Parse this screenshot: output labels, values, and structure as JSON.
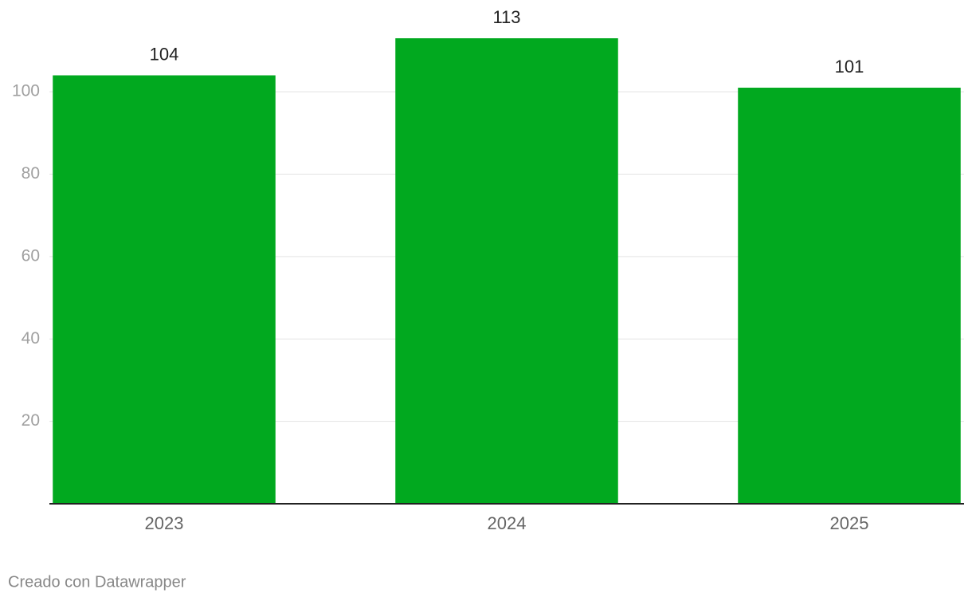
{
  "chart_data": {
    "type": "bar",
    "categories": [
      "2023",
      "2024",
      "2025"
    ],
    "values": [
      104,
      113,
      101
    ],
    "color": "#01a91f",
    "ylim": [
      0,
      113
    ],
    "yticks": [
      20,
      40,
      60,
      80,
      100
    ],
    "grid": true,
    "credit": "Creado con Datawrapper"
  }
}
